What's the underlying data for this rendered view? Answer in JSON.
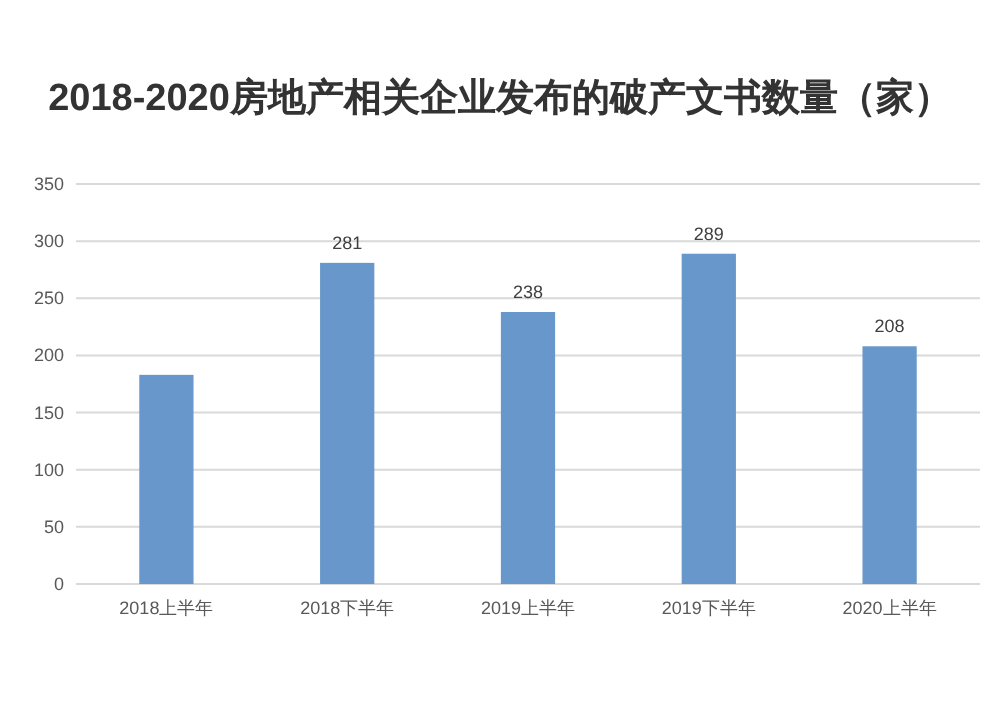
{
  "chart_data": {
    "type": "bar",
    "title": "2018-2020房地产相关企业发布的破产文书数量（家）",
    "categories": [
      "2018上半年",
      "2018下半年",
      "2019上半年",
      "2019下半年",
      "2020上半年"
    ],
    "values": [
      183,
      281,
      238,
      289,
      208
    ],
    "value_labels": [
      null,
      "281",
      "238",
      "289",
      "208"
    ],
    "color": "#6797cb",
    "ylim": [
      0,
      350
    ],
    "yticks": [
      0,
      50,
      100,
      150,
      200,
      250,
      300,
      350
    ],
    "grid": "y"
  }
}
